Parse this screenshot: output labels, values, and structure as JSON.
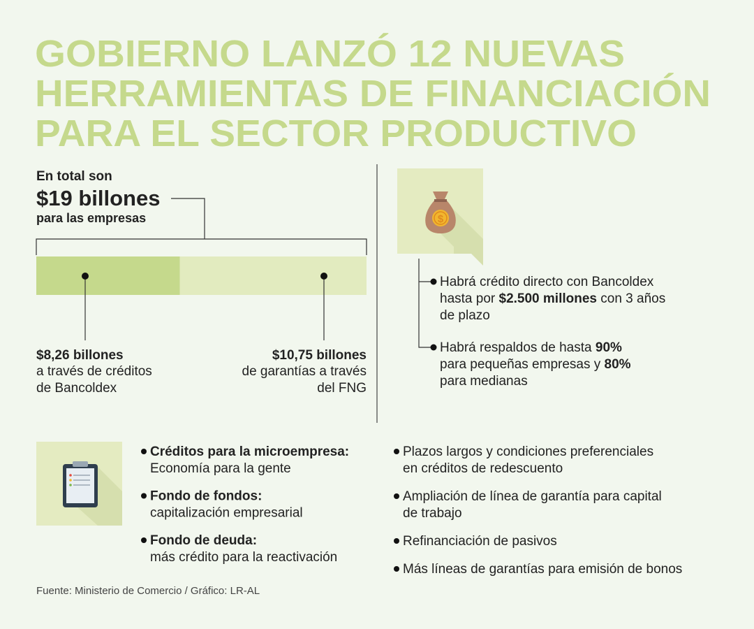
{
  "title_lines": [
    "GOBIERNO LANZÓ 12 NUEVAS",
    "HERRAMIENTAS DE FINANCIACIÓN",
    "PARA EL SECTOR PRODUCTIVO"
  ],
  "intro": {
    "line1": "En total son",
    "amount": "$19 billones",
    "line3": "para las empresas"
  },
  "bar": {
    "segments": [
      {
        "value": 8.26,
        "label": "$8,26 billones",
        "caption": [
          "a través de créditos",
          "de Bancoldex"
        ],
        "color": "#c5d98c"
      },
      {
        "value": 10.75,
        "label": "$10,75 billones",
        "caption": [
          "de garantías a través",
          "del FNG"
        ],
        "color": "#e2ebbf"
      }
    ]
  },
  "highlights": [
    {
      "lines": [
        [
          {
            "text": "Habrá crédito directo con Bancoldex"
          }
        ],
        [
          {
            "text": "hasta por "
          },
          {
            "text": "$2.500 millones",
            "bold": true
          },
          {
            "text": " con 3 años"
          }
        ],
        [
          {
            "text": "de plazo"
          }
        ]
      ]
    },
    {
      "lines": [
        [
          {
            "text": "Habrá respaldos de hasta "
          },
          {
            "text": "90%",
            "bold": true
          }
        ],
        [
          {
            "text": "para pequeñas empresas y "
          },
          {
            "text": "80%",
            "bold": true
          }
        ],
        [
          {
            "text": "para medianas"
          }
        ]
      ]
    }
  ],
  "tools_left": [
    {
      "title": "Créditos para la microempresa:",
      "desc": "Economía para la gente"
    },
    {
      "title": "Fondo de fondos:",
      "desc": "capitalización empresarial"
    },
    {
      "title": "Fondo de deuda:",
      "desc": "más crédito para la reactivación"
    }
  ],
  "tools_right": [
    [
      "Plazos largos y condiciones preferenciales",
      "en créditos de redescuento"
    ],
    [
      "Ampliación de línea de garantía para capital",
      "de trabajo"
    ],
    [
      "Refinanciación de pasivos"
    ],
    [
      "Más líneas de garantías para emisión de bonos"
    ]
  ],
  "source": "Fuente: Ministerio de Comercio / Gráfico: LR-AL"
}
